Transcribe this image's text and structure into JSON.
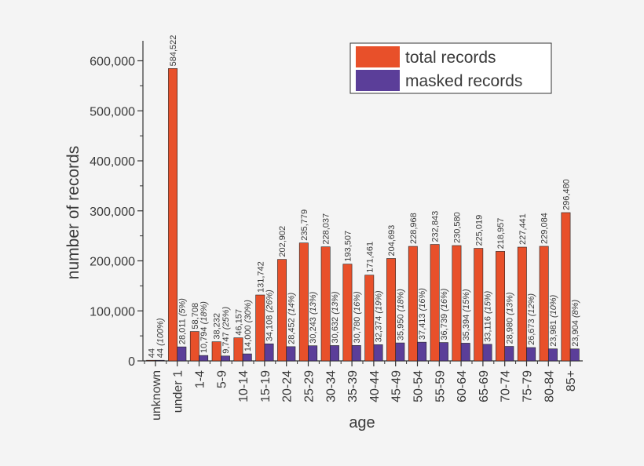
{
  "chart_data": {
    "type": "bar",
    "xlabel": "age",
    "ylabel": "number of records",
    "ylim": [
      0,
      640000
    ],
    "yticks": [
      0,
      100000,
      200000,
      300000,
      400000,
      500000,
      600000
    ],
    "ytick_labels": [
      "0",
      "100,000",
      "200,000",
      "300,000",
      "400,000",
      "500,000",
      "600,000"
    ],
    "grid": false,
    "legend_position": "top-right",
    "categories": [
      "unknown",
      "under 1",
      "1-4",
      "5-9",
      "10-14",
      "15-19",
      "20-24",
      "25-29",
      "30-34",
      "35-39",
      "40-44",
      "45-49",
      "50-54",
      "55-59",
      "60-64",
      "65-69",
      "70-74",
      "75-79",
      "80-84",
      "85+"
    ],
    "series": [
      {
        "name": "total records",
        "color": "#e8502a",
        "values": [
          44,
          584522,
          58708,
          38232,
          46157,
          131742,
          202902,
          235779,
          228037,
          193507,
          171461,
          204693,
          228968,
          232843,
          230580,
          225019,
          218957,
          227441,
          229084,
          296480
        ],
        "labels": [
          "44",
          "584,522",
          "58,708",
          "38,232",
          "46,157",
          "131,742",
          "202,902",
          "235,779",
          "228,037",
          "193,507",
          "171,461",
          "204,693",
          "228,968",
          "232,843",
          "230,580",
          "225,019",
          "218,957",
          "227,441",
          "229,084",
          "296,480"
        ]
      },
      {
        "name": "masked records",
        "color": "#5b3e99",
        "values": [
          44,
          28011,
          10794,
          9747,
          14000,
          34108,
          28452,
          30243,
          30632,
          30780,
          32374,
          35950,
          37413,
          36739,
          35394,
          33116,
          28980,
          26673,
          23981,
          23904
        ],
        "labels": [
          "44",
          "28,011",
          "10,794",
          "9,747",
          "14,000",
          "34,108",
          "28,452",
          "30,243",
          "30,632",
          "30,780",
          "32,374",
          "35,950",
          "37,413",
          "36,739",
          "35,394",
          "33,116",
          "28,980",
          "26,673",
          "23,981",
          "23,904"
        ],
        "percent_labels": [
          "(100%)",
          "(5%)",
          "(18%)",
          "(25%)",
          "(30%)",
          "(26%)",
          "(14%)",
          "(13%)",
          "(13%)",
          "(16%)",
          "(19%)",
          "(18%)",
          "(16%)",
          "(16%)",
          "(15%)",
          "(15%)",
          "(13%)",
          "(12%)",
          "(10%)",
          "(8%)"
        ]
      }
    ]
  }
}
